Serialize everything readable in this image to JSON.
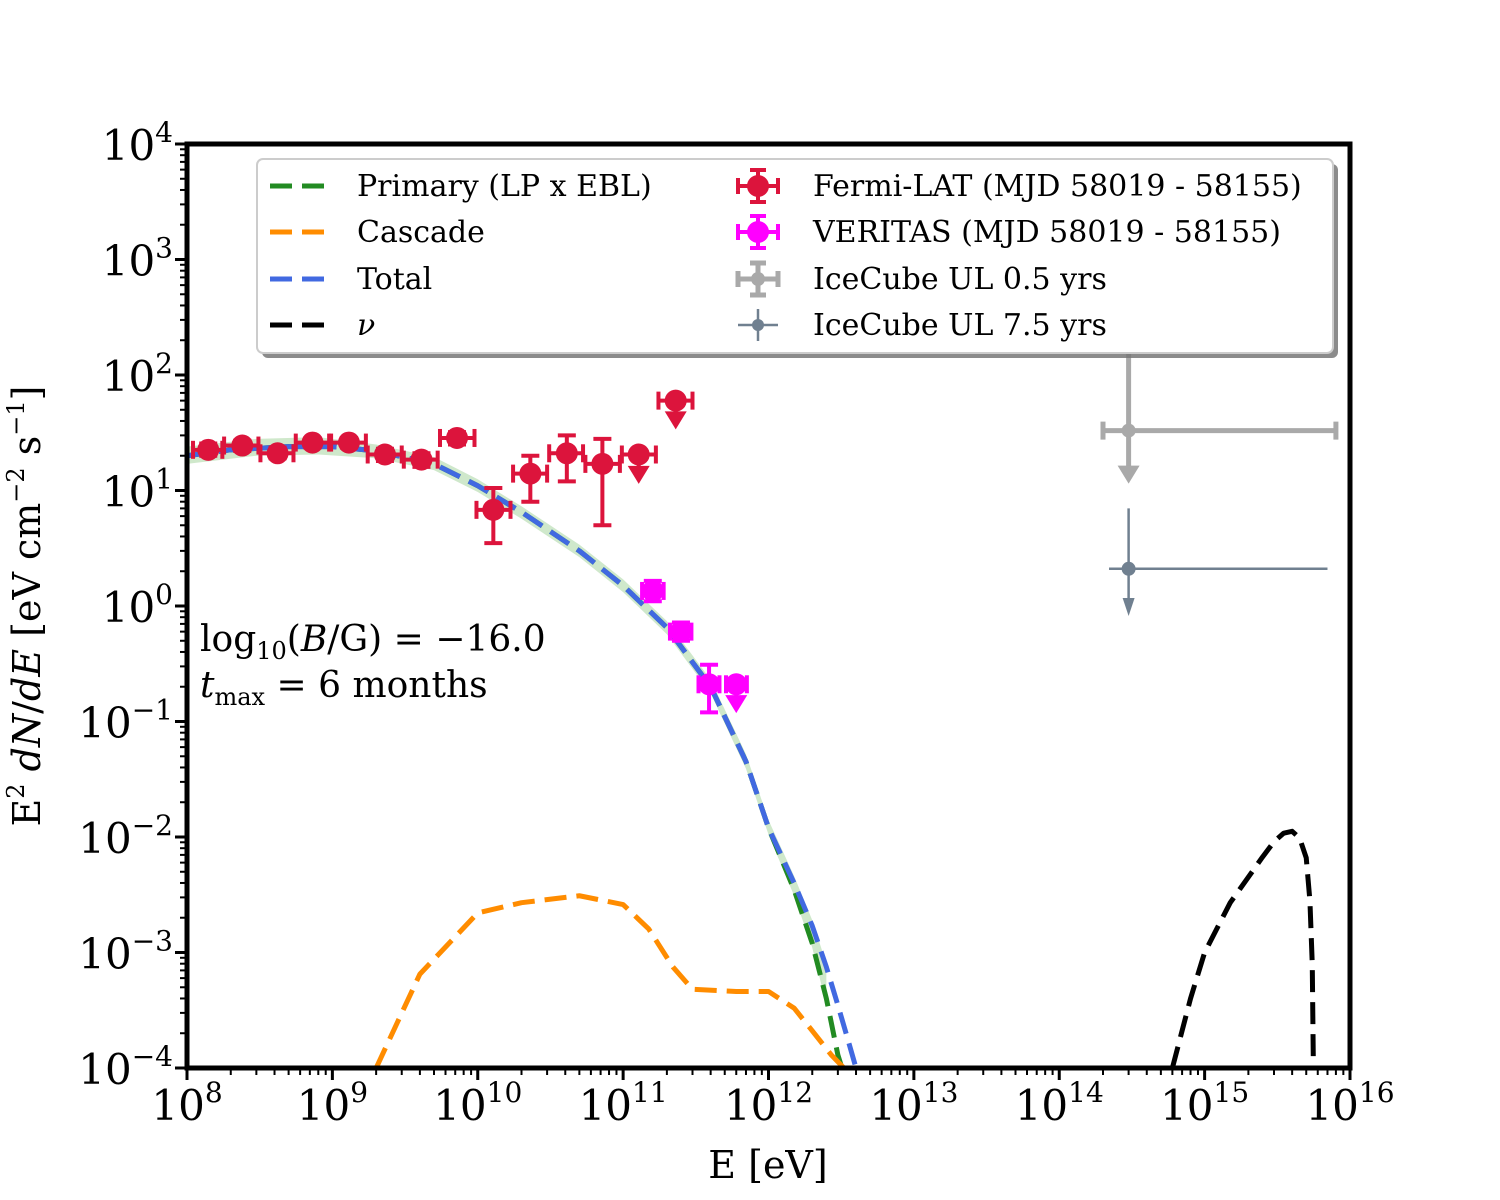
{
  "chart_data": {
    "type": "scatter",
    "xscale": "log",
    "yscale": "log",
    "xlim": [
      100000000.0,
      1e+16
    ],
    "ylim": [
      0.0001,
      10000.0
    ],
    "xlabel": "E [eV]",
    "ylabel_prefix": "E",
    "ylabel_rest": "dN/dE [eV cm",
    "ylabel_tail": "s",
    "xticks": [
      {
        "exp": 8,
        "label": "10",
        "sup": "8"
      },
      {
        "exp": 9,
        "label": "10",
        "sup": "9"
      },
      {
        "exp": 10,
        "label": "10",
        "sup": "10"
      },
      {
        "exp": 11,
        "label": "10",
        "sup": "11"
      },
      {
        "exp": 12,
        "label": "10",
        "sup": "12"
      },
      {
        "exp": 13,
        "label": "10",
        "sup": "13"
      },
      {
        "exp": 14,
        "label": "10",
        "sup": "14"
      },
      {
        "exp": 15,
        "label": "10",
        "sup": "15"
      },
      {
        "exp": 16,
        "label": "10",
        "sup": "16"
      }
    ],
    "yticks": [
      {
        "exp": -4,
        "label": "10",
        "sup": "−4"
      },
      {
        "exp": -3,
        "label": "10",
        "sup": "−3"
      },
      {
        "exp": -2,
        "label": "10",
        "sup": "−2"
      },
      {
        "exp": -1,
        "label": "10",
        "sup": "−1"
      },
      {
        "exp": 0,
        "label": "10",
        "sup": "0"
      },
      {
        "exp": 1,
        "label": "10",
        "sup": "1"
      },
      {
        "exp": 2,
        "label": "10",
        "sup": "2"
      },
      {
        "exp": 3,
        "label": "10",
        "sup": "3"
      },
      {
        "exp": 4,
        "label": "10",
        "sup": "4"
      }
    ],
    "lines": [
      {
        "name": "Primary (LP x EBL)",
        "color": "#228b22",
        "style": "dashed",
        "points": [
          [
            100000000.0,
            20
          ],
          [
            200000000.0,
            22.5
          ],
          [
            500000000.0,
            24
          ],
          [
            1000000000.0,
            24
          ],
          [
            2000000000.0,
            22
          ],
          [
            5000000000.0,
            17
          ],
          [
            10000000000.0,
            11
          ],
          [
            20000000000.0,
            6.5
          ],
          [
            50000000000.0,
            3
          ],
          [
            100000000000.0,
            1.5
          ],
          [
            200000000000.0,
            0.65
          ],
          [
            400000000000.0,
            0.2
          ],
          [
            700000000000.0,
            0.045
          ],
          [
            1000000000000.0,
            0.012
          ],
          [
            1500000000000.0,
            0.0035
          ],
          [
            2000000000000.0,
            0.0012
          ],
          [
            2500000000000.0,
            0.0004
          ],
          [
            3000000000000.0,
            0.00013
          ],
          [
            3200000000000.0,
            0.0001
          ]
        ]
      },
      {
        "name": "Cascade",
        "color": "#ff8c00",
        "style": "dashed",
        "points": [
          [
            2000000000.0,
            0.0001
          ],
          [
            4000000000.0,
            0.00065
          ],
          [
            10000000000.0,
            0.0022
          ],
          [
            20000000000.0,
            0.0027
          ],
          [
            50000000000.0,
            0.0031
          ],
          [
            100000000000.0,
            0.0026
          ],
          [
            150000000000.0,
            0.0016
          ],
          [
            220000000000.0,
            0.00075
          ],
          [
            300000000000.0,
            0.00048
          ],
          [
            600000000000.0,
            0.00046
          ],
          [
            1000000000000.0,
            0.00046
          ],
          [
            1500000000000.0,
            0.00033
          ],
          [
            2000000000000.0,
            0.00021
          ],
          [
            2700000000000.0,
            0.00013
          ],
          [
            3300000000000.0,
            0.0001
          ]
        ]
      },
      {
        "name": "Total",
        "color": "#4169e1",
        "style": "dashed",
        "points": [
          [
            100000000.0,
            20
          ],
          [
            200000000.0,
            22.5
          ],
          [
            500000000.0,
            24
          ],
          [
            1000000000.0,
            24
          ],
          [
            2000000000.0,
            22
          ],
          [
            5000000000.0,
            17
          ],
          [
            10000000000.0,
            11
          ],
          [
            20000000000.0,
            6.5
          ],
          [
            50000000000.0,
            3
          ],
          [
            100000000000.0,
            1.5
          ],
          [
            200000000000.0,
            0.65
          ],
          [
            400000000000.0,
            0.2
          ],
          [
            700000000000.0,
            0.045
          ],
          [
            1000000000000.0,
            0.012
          ],
          [
            1500000000000.0,
            0.004
          ],
          [
            2000000000000.0,
            0.0017
          ],
          [
            2500000000000.0,
            0.00075
          ],
          [
            3000000000000.0,
            0.00035
          ],
          [
            3500000000000.0,
            0.00018
          ],
          [
            4000000000000.0,
            0.0001
          ]
        ]
      },
      {
        "name": "ν",
        "color": "#000000",
        "style": "dashed",
        "points": [
          [
            600000000000000.0,
            0.0001
          ],
          [
            800000000000000.0,
            0.0004
          ],
          [
            1000000000000000.0,
            0.001
          ],
          [
            1500000000000000.0,
            0.0027
          ],
          [
            2000000000000000.0,
            0.0045
          ],
          [
            2500000000000000.0,
            0.0067
          ],
          [
            3000000000000000.0,
            0.0091
          ],
          [
            3500000000000000.0,
            0.0108
          ],
          [
            4000000000000000.0,
            0.0112
          ],
          [
            4500000000000000.0,
            0.0098
          ],
          [
            5000000000000000.0,
            0.0066
          ],
          [
            5300000000000000.0,
            0.0028
          ],
          [
            5500000000000000.0,
            0.0008
          ],
          [
            5600000000000000.0,
            0.0001
          ]
        ]
      }
    ],
    "band": {
      "color": "#a8d5a0",
      "opacity": 0.55,
      "upper": [
        [
          100000000.0,
          24
        ],
        [
          300000000.0,
          28
        ],
        [
          800000000.0,
          29
        ],
        [
          2000000000.0,
          25
        ],
        [
          5000000000.0,
          19.5
        ],
        [
          10000000000.0,
          12.5
        ],
        [
          20000000000.0,
          7.3
        ],
        [
          50000000000.0,
          3.4
        ],
        [
          100000000000.0,
          1.7
        ],
        [
          200000000000.0,
          0.74
        ],
        [
          400000000000.0,
          0.23
        ],
        [
          700000000000.0,
          0.052
        ],
        [
          1000000000000.0,
          0.014
        ],
        [
          1500000000000.0,
          0.0046
        ],
        [
          2000000000000.0,
          0.0019
        ],
        [
          2500000000000.0,
          0.0008
        ]
      ],
      "lower": [
        [
          100000000.0,
          17
        ],
        [
          300000000.0,
          20
        ],
        [
          800000000.0,
          20.5
        ],
        [
          2000000000.0,
          19
        ],
        [
          5000000000.0,
          15
        ],
        [
          10000000000.0,
          9.7
        ],
        [
          20000000000.0,
          5.7
        ],
        [
          50000000000.0,
          2.65
        ],
        [
          100000000000.0,
          1.32
        ],
        [
          200000000000.0,
          0.57
        ],
        [
          400000000000.0,
          0.175
        ],
        [
          700000000000.0,
          0.039
        ],
        [
          1000000000000.0,
          0.0105
        ],
        [
          1500000000000.0,
          0.0031
        ],
        [
          2000000000000.0,
          0.0011
        ],
        [
          2500000000000.0,
          0.00035
        ]
      ]
    },
    "fermi": {
      "name": "Fermi-LAT (MJD 58019 - 58155)",
      "color": "#dc143c",
      "points": [
        {
          "x": 140000000.0,
          "y": 22.5,
          "xlo": 110000000.0,
          "xhi": 175000000.0,
          "ylo": 20,
          "yhi": 25.5,
          "ul": false
        },
        {
          "x": 240000000.0,
          "y": 24.5,
          "xlo": 180000000.0,
          "xhi": 310000000.0,
          "ylo": 22,
          "yhi": 27,
          "ul": false
        },
        {
          "x": 420000000.0,
          "y": 21,
          "xlo": 320000000.0,
          "xhi": 540000000.0,
          "ylo": 19,
          "yhi": 23.5,
          "ul": false
        },
        {
          "x": 730000000.0,
          "y": 26,
          "xlo": 560000000.0,
          "xhi": 950000000.0,
          "ylo": 23.5,
          "yhi": 28.5,
          "ul": false
        },
        {
          "x": 1300000000.0,
          "y": 26,
          "xlo": 980000000.0,
          "xhi": 1700000000.0,
          "ylo": 23.5,
          "yhi": 28.5,
          "ul": false
        },
        {
          "x": 2300000000.0,
          "y": 20.5,
          "xlo": 1750000000.0,
          "xhi": 3000000000.0,
          "ylo": 18,
          "yhi": 23,
          "ul": false
        },
        {
          "x": 4100000000.0,
          "y": 18.5,
          "xlo": 3100000000.0,
          "xhi": 5300000000.0,
          "ylo": 16,
          "yhi": 21,
          "ul": false
        },
        {
          "x": 7200000000.0,
          "y": 28.5,
          "xlo": 5500000000.0,
          "xhi": 9500000000.0,
          "ylo": 25,
          "yhi": 32,
          "ul": false
        },
        {
          "x": 12800000000.0,
          "y": 6.8,
          "xlo": 9800000000.0,
          "xhi": 16800000000.0,
          "ylo": 3.5,
          "yhi": 10.5,
          "ul": false
        },
        {
          "x": 23000000000.0,
          "y": 14,
          "xlo": 17500000000.0,
          "xhi": 30000000000.0,
          "ylo": 8,
          "yhi": 20,
          "ul": false
        },
        {
          "x": 41000000000.0,
          "y": 21,
          "xlo": 31000000000.0,
          "xhi": 53000000000.0,
          "ylo": 12,
          "yhi": 30,
          "ul": false
        },
        {
          "x": 72000000000.0,
          "y": 17,
          "xlo": 55000000000.0,
          "xhi": 95000000000.0,
          "ylo": 5,
          "yhi": 28,
          "ul": false
        },
        {
          "x": 128000000000.0,
          "y": 20.5,
          "xlo": 98000000000.0,
          "xhi": 168000000000.0,
          "ylo": 14.5,
          "yhi": 20.5,
          "ul": true
        },
        {
          "x": 230000000000.0,
          "y": 60,
          "xlo": 175000000000.0,
          "xhi": 300000000000.0,
          "ylo": 43,
          "yhi": 60,
          "ul": true
        }
      ]
    },
    "veritas": {
      "name": "VERITAS (MJD 58019 - 58155)",
      "color": "#ff00ff",
      "points": [
        {
          "x": 160000000000.0,
          "y": 1.35,
          "xlo": 135000000000.0,
          "xhi": 190000000000.0,
          "ylo": 1.1,
          "yhi": 1.65,
          "ul": false
        },
        {
          "x": 250000000000.0,
          "y": 0.6,
          "xlo": 210000000000.0,
          "xhi": 295000000000.0,
          "ylo": 0.5,
          "yhi": 0.72,
          "ul": false
        },
        {
          "x": 390000000000.0,
          "y": 0.21,
          "xlo": 330000000000.0,
          "xhi": 460000000000.0,
          "ylo": 0.12,
          "yhi": 0.31,
          "ul": false
        },
        {
          "x": 600000000000.0,
          "y": 0.21,
          "xlo": 510000000000.0,
          "xhi": 710000000000.0,
          "ylo": 0.15,
          "yhi": 0.21,
          "ul": true
        }
      ]
    },
    "icecube_05": {
      "name": "IceCube UL 0.5 yrs",
      "color": "#a9a9a9",
      "x": 300000000000000.0,
      "y": 33,
      "xlo": 200000000000000.0,
      "xhi": 8000000000000000.0,
      "ytop": 160,
      "yarrow": 14
    },
    "icecube_75": {
      "name": "IceCube UL 7.5 yrs",
      "color": "#708090",
      "x": 300000000000000.0,
      "y": 2.1,
      "xlo": 220000000000000.0,
      "xhi": 7000000000000000.0,
      "ytop": 7,
      "yarrow": 1
    },
    "legend": {
      "placement": "top",
      "col1": [
        "Primary (LP x EBL)",
        "Cascade",
        "Total",
        "ν"
      ],
      "col2": [
        "Fermi-LAT (MJD 58019 - 58155)",
        "VERITAS (MJD 58019 - 58155)",
        "IceCube UL 0.5 yrs",
        "IceCube UL 7.5 yrs"
      ]
    },
    "annotation": {
      "line1_pre": "log",
      "line1_sub": "10",
      "line1_mid": "(",
      "line1_B": "B",
      "line1_post": "/G) = −16.0",
      "line2_t": "t",
      "line2_sub": "max",
      "line2_post": " = 6 months"
    }
  }
}
